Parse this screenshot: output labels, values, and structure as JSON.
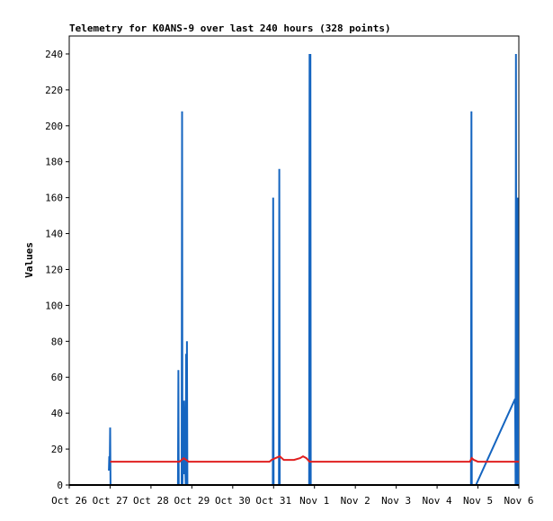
{
  "chart_data": {
    "type": "line",
    "title": "Telemetry for K0ANS-9 over last 240 hours (328 points)",
    "xlabel": "",
    "ylabel": "Values",
    "ylim": [
      0,
      250
    ],
    "xlim": [
      0,
      11
    ],
    "x_ticks": [
      {
        "x": 0,
        "label": "Oct 26"
      },
      {
        "x": 1,
        "label": "Oct 27"
      },
      {
        "x": 2,
        "label": "Oct 28"
      },
      {
        "x": 3,
        "label": "Oct 29"
      },
      {
        "x": 4,
        "label": "Oct 30"
      },
      {
        "x": 5,
        "label": "Oct 31"
      },
      {
        "x": 6,
        "label": "Nov 1"
      },
      {
        "x": 7,
        "label": "Nov 2"
      },
      {
        "x": 8,
        "label": "Nov 3"
      },
      {
        "x": 9,
        "label": "Nov 4"
      },
      {
        "x": 10,
        "label": "Nov 5"
      },
      {
        "x": 11,
        "label": "Nov 6"
      }
    ],
    "y_ticks": [
      0,
      20,
      40,
      60,
      80,
      100,
      120,
      140,
      160,
      180,
      200,
      220,
      240
    ],
    "grid": false,
    "series": [
      {
        "color": "#1565c0",
        "style": "spikes",
        "points": [
          [
            0.97,
            8
          ],
          [
            0.98,
            16
          ],
          [
            0.99,
            8
          ],
          [
            1.0,
            32
          ],
          [
            1.01,
            0
          ],
          [
            2.66,
            0
          ],
          [
            2.67,
            64
          ],
          [
            2.68,
            0
          ],
          [
            2.75,
            0
          ],
          [
            2.76,
            208
          ],
          [
            2.77,
            0
          ],
          [
            2.78,
            20
          ],
          [
            2.79,
            33
          ],
          [
            2.8,
            6
          ],
          [
            2.81,
            47
          ],
          [
            2.82,
            25
          ],
          [
            2.85,
            0
          ],
          [
            2.86,
            73
          ],
          [
            2.87,
            0
          ],
          [
            2.88,
            80
          ],
          [
            2.89,
            0
          ],
          [
            4.98,
            0
          ],
          [
            4.99,
            160
          ],
          [
            5.0,
            0
          ],
          [
            5.13,
            0
          ],
          [
            5.14,
            176
          ],
          [
            5.15,
            0
          ],
          [
            5.87,
            0
          ],
          [
            5.88,
            240
          ],
          [
            5.89,
            0
          ],
          [
            5.9,
            240
          ],
          [
            5.91,
            0
          ],
          [
            9.83,
            0
          ],
          [
            9.84,
            208
          ],
          [
            9.85,
            0
          ],
          [
            9.95,
            0
          ],
          [
            10.91,
            48
          ],
          [
            10.92,
            0
          ],
          [
            10.93,
            240
          ],
          [
            10.94,
            0
          ],
          [
            10.96,
            0
          ],
          [
            10.97,
            160
          ],
          [
            10.98,
            0
          ]
        ]
      },
      {
        "color": "#e02020",
        "style": "line",
        "points": [
          [
            1.0,
            13
          ],
          [
            2.7,
            13
          ],
          [
            2.75,
            14
          ],
          [
            2.8,
            15
          ],
          [
            2.86,
            14
          ],
          [
            2.92,
            13
          ],
          [
            4.9,
            13
          ],
          [
            4.95,
            14
          ],
          [
            5.05,
            15
          ],
          [
            5.15,
            16
          ],
          [
            5.25,
            14
          ],
          [
            5.5,
            14
          ],
          [
            5.65,
            15
          ],
          [
            5.72,
            16
          ],
          [
            5.8,
            15
          ],
          [
            5.88,
            13
          ],
          [
            9.8,
            13
          ],
          [
            9.85,
            15
          ],
          [
            9.9,
            14
          ],
          [
            10.0,
            13
          ],
          [
            11.0,
            13
          ]
        ]
      }
    ]
  }
}
